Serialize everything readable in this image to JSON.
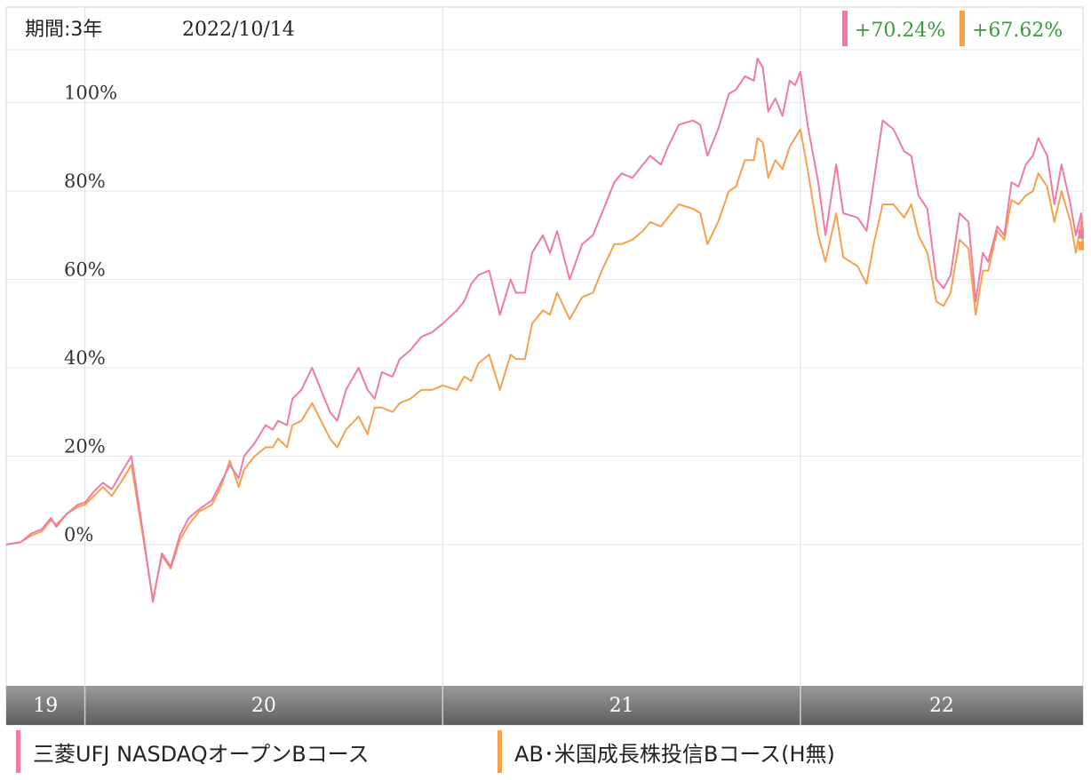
{
  "header": {
    "period_label": "期間:3年",
    "date_label": "2022/10/14"
  },
  "returns": [
    {
      "value": "+70.24%",
      "color": "#ef7aa5"
    },
    {
      "value": "+67.62%",
      "color": "#f7a04c"
    }
  ],
  "legend": [
    {
      "label": "三菱UFJ NASDAQオープンBコース",
      "color": "#ef7aa5"
    },
    {
      "label": "AB･米国成長株投信Bコース(H無)",
      "color": "#f7a04c"
    }
  ],
  "chart_data": {
    "type": "line",
    "yticks": [
      0,
      20,
      40,
      60,
      80,
      100
    ],
    "ytick_labels": [
      "0%",
      "20%",
      "40%",
      "60%",
      "80%",
      "100%"
    ],
    "ylim": [
      -32,
      112
    ],
    "xlim": [
      2019.78,
      2022.79
    ],
    "xbands": [
      {
        "label": "19",
        "start": 2019.78,
        "end": 2020.0
      },
      {
        "label": "20",
        "start": 2020.0,
        "end": 2021.0
      },
      {
        "label": "21",
        "start": 2021.0,
        "end": 2022.0
      },
      {
        "label": "22",
        "start": 2022.0,
        "end": 2022.79
      }
    ],
    "grid": true,
    "series": [
      {
        "name": "三菱UFJ NASDAQオープンBコース",
        "color": "#ef7aa5",
        "points": [
          [
            2019.78,
            0
          ],
          [
            2019.82,
            0.5
          ],
          [
            2019.85,
            2.5
          ],
          [
            2019.88,
            3.5
          ],
          [
            2019.905,
            6
          ],
          [
            2019.92,
            4
          ],
          [
            2019.95,
            7
          ],
          [
            2019.98,
            9
          ],
          [
            2020.0,
            9.5
          ],
          [
            2020.025,
            12
          ],
          [
            2020.05,
            14
          ],
          [
            2020.075,
            12.5
          ],
          [
            2020.1,
            16
          ],
          [
            2020.13,
            20
          ],
          [
            2020.16,
            4
          ],
          [
            2020.19,
            -13
          ],
          [
            2020.215,
            -2
          ],
          [
            2020.24,
            -5
          ],
          [
            2020.265,
            2
          ],
          [
            2020.29,
            6
          ],
          [
            2020.32,
            8
          ],
          [
            2020.355,
            10
          ],
          [
            2020.38,
            14
          ],
          [
            2020.405,
            18
          ],
          [
            2020.43,
            15
          ],
          [
            2020.445,
            20
          ],
          [
            2020.475,
            23
          ],
          [
            2020.505,
            27
          ],
          [
            2020.525,
            26
          ],
          [
            2020.54,
            28
          ],
          [
            2020.565,
            27
          ],
          [
            2020.58,
            33
          ],
          [
            2020.605,
            35
          ],
          [
            2020.635,
            40
          ],
          [
            2020.66,
            35
          ],
          [
            2020.685,
            30
          ],
          [
            2020.705,
            28
          ],
          [
            2020.73,
            35
          ],
          [
            2020.765,
            40
          ],
          [
            2020.79,
            35
          ],
          [
            2020.81,
            33
          ],
          [
            2020.83,
            39
          ],
          [
            2020.86,
            38
          ],
          [
            2020.88,
            42
          ],
          [
            2020.91,
            44
          ],
          [
            2020.94,
            47
          ],
          [
            2020.97,
            48
          ],
          [
            2021.0,
            50
          ],
          [
            2021.04,
            53
          ],
          [
            2021.06,
            55
          ],
          [
            2021.08,
            59
          ],
          [
            2021.1,
            61
          ],
          [
            2021.13,
            62
          ],
          [
            2021.16,
            52
          ],
          [
            2021.19,
            60
          ],
          [
            2021.205,
            57
          ],
          [
            2021.23,
            57
          ],
          [
            2021.25,
            66
          ],
          [
            2021.28,
            70
          ],
          [
            2021.3,
            66
          ],
          [
            2021.32,
            71
          ],
          [
            2021.355,
            60
          ],
          [
            2021.39,
            68
          ],
          [
            2021.42,
            70
          ],
          [
            2021.445,
            75
          ],
          [
            2021.48,
            82
          ],
          [
            2021.5,
            84
          ],
          [
            2021.53,
            83
          ],
          [
            2021.56,
            86
          ],
          [
            2021.58,
            88
          ],
          [
            2021.61,
            86
          ],
          [
            2021.63,
            90
          ],
          [
            2021.66,
            95
          ],
          [
            2021.7,
            96
          ],
          [
            2021.72,
            95
          ],
          [
            2021.74,
            88
          ],
          [
            2021.77,
            94
          ],
          [
            2021.8,
            102
          ],
          [
            2021.82,
            103
          ],
          [
            2021.845,
            106
          ],
          [
            2021.87,
            105
          ],
          [
            2021.88,
            110
          ],
          [
            2021.895,
            108
          ],
          [
            2021.91,
            98
          ],
          [
            2021.93,
            101
          ],
          [
            2021.95,
            97
          ],
          [
            2021.97,
            105
          ],
          [
            2021.985,
            104
          ],
          [
            2022.0,
            107
          ],
          [
            2022.02,
            95
          ],
          [
            2022.05,
            82
          ],
          [
            2022.07,
            70
          ],
          [
            2022.1,
            86
          ],
          [
            2022.12,
            75
          ],
          [
            2022.16,
            74
          ],
          [
            2022.185,
            71
          ],
          [
            2022.205,
            82
          ],
          [
            2022.23,
            96
          ],
          [
            2022.26,
            94
          ],
          [
            2022.29,
            89
          ],
          [
            2022.31,
            88
          ],
          [
            2022.33,
            79
          ],
          [
            2022.355,
            76
          ],
          [
            2022.38,
            60
          ],
          [
            2022.4,
            58
          ],
          [
            2022.42,
            61
          ],
          [
            2022.445,
            75
          ],
          [
            2022.47,
            73
          ],
          [
            2022.49,
            55
          ],
          [
            2022.51,
            66
          ],
          [
            2022.525,
            64
          ],
          [
            2022.55,
            72
          ],
          [
            2022.57,
            70
          ],
          [
            2022.59,
            82
          ],
          [
            2022.61,
            81
          ],
          [
            2022.63,
            86
          ],
          [
            2022.65,
            88
          ],
          [
            2022.665,
            92
          ],
          [
            2022.69,
            88
          ],
          [
            2022.71,
            77
          ],
          [
            2022.73,
            86
          ],
          [
            2022.755,
            77
          ],
          [
            2022.77,
            70
          ],
          [
            2022.785,
            75
          ],
          [
            2022.79,
            70.24
          ]
        ]
      },
      {
        "name": "AB･米国成長株投信Bコース(H無)",
        "color": "#f7a04c",
        "points": [
          [
            2019.78,
            0
          ],
          [
            2019.82,
            0.5
          ],
          [
            2019.85,
            2
          ],
          [
            2019.88,
            3
          ],
          [
            2019.905,
            5.5
          ],
          [
            2019.92,
            4.5
          ],
          [
            2019.95,
            7
          ],
          [
            2019.98,
            8.5
          ],
          [
            2020.0,
            9
          ],
          [
            2020.025,
            11
          ],
          [
            2020.05,
            13
          ],
          [
            2020.075,
            11
          ],
          [
            2020.1,
            14
          ],
          [
            2020.13,
            18
          ],
          [
            2020.16,
            3
          ],
          [
            2020.19,
            -12.5
          ],
          [
            2020.215,
            -2.5
          ],
          [
            2020.24,
            -5.5
          ],
          [
            2020.265,
            1
          ],
          [
            2020.29,
            4.5
          ],
          [
            2020.32,
            7.5
          ],
          [
            2020.355,
            9
          ],
          [
            2020.38,
            13
          ],
          [
            2020.405,
            19
          ],
          [
            2020.43,
            13
          ],
          [
            2020.445,
            17
          ],
          [
            2020.475,
            20
          ],
          [
            2020.505,
            22
          ],
          [
            2020.525,
            22
          ],
          [
            2020.54,
            24
          ],
          [
            2020.565,
            22
          ],
          [
            2020.58,
            27
          ],
          [
            2020.605,
            28
          ],
          [
            2020.635,
            32
          ],
          [
            2020.66,
            28
          ],
          [
            2020.685,
            24
          ],
          [
            2020.705,
            22
          ],
          [
            2020.73,
            26
          ],
          [
            2020.765,
            29
          ],
          [
            2020.79,
            25
          ],
          [
            2020.81,
            31
          ],
          [
            2020.83,
            31
          ],
          [
            2020.86,
            30
          ],
          [
            2020.88,
            32
          ],
          [
            2020.91,
            33
          ],
          [
            2020.94,
            35
          ],
          [
            2020.97,
            35
          ],
          [
            2021.0,
            36
          ],
          [
            2021.04,
            35
          ],
          [
            2021.06,
            38
          ],
          [
            2021.08,
            37
          ],
          [
            2021.1,
            41
          ],
          [
            2021.13,
            43
          ],
          [
            2021.16,
            35
          ],
          [
            2021.19,
            43
          ],
          [
            2021.205,
            42
          ],
          [
            2021.23,
            42
          ],
          [
            2021.25,
            50
          ],
          [
            2021.28,
            53
          ],
          [
            2021.3,
            52
          ],
          [
            2021.32,
            57
          ],
          [
            2021.355,
            51
          ],
          [
            2021.39,
            56
          ],
          [
            2021.42,
            57
          ],
          [
            2021.445,
            62
          ],
          [
            2021.48,
            68
          ],
          [
            2021.5,
            68
          ],
          [
            2021.53,
            69
          ],
          [
            2021.56,
            71
          ],
          [
            2021.58,
            73
          ],
          [
            2021.61,
            72
          ],
          [
            2021.63,
            74
          ],
          [
            2021.66,
            77
          ],
          [
            2021.7,
            76
          ],
          [
            2021.72,
            75
          ],
          [
            2021.74,
            68
          ],
          [
            2021.77,
            73
          ],
          [
            2021.8,
            80
          ],
          [
            2021.82,
            81
          ],
          [
            2021.845,
            87
          ],
          [
            2021.87,
            87
          ],
          [
            2021.88,
            92
          ],
          [
            2021.895,
            91
          ],
          [
            2021.91,
            83
          ],
          [
            2021.93,
            87
          ],
          [
            2021.95,
            85
          ],
          [
            2021.97,
            90
          ],
          [
            2021.985,
            92
          ],
          [
            2022.0,
            94
          ],
          [
            2022.02,
            85
          ],
          [
            2022.05,
            70
          ],
          [
            2022.07,
            64
          ],
          [
            2022.1,
            75
          ],
          [
            2022.12,
            65
          ],
          [
            2022.16,
            63
          ],
          [
            2022.185,
            59
          ],
          [
            2022.205,
            68
          ],
          [
            2022.23,
            77
          ],
          [
            2022.26,
            77
          ],
          [
            2022.29,
            74
          ],
          [
            2022.31,
            77
          ],
          [
            2022.33,
            70
          ],
          [
            2022.355,
            66
          ],
          [
            2022.38,
            55
          ],
          [
            2022.4,
            54
          ],
          [
            2022.42,
            57
          ],
          [
            2022.445,
            69
          ],
          [
            2022.47,
            67
          ],
          [
            2022.49,
            52
          ],
          [
            2022.51,
            62
          ],
          [
            2022.525,
            62
          ],
          [
            2022.55,
            71
          ],
          [
            2022.57,
            69
          ],
          [
            2022.59,
            78
          ],
          [
            2022.61,
            77
          ],
          [
            2022.63,
            79
          ],
          [
            2022.65,
            80
          ],
          [
            2022.665,
            84
          ],
          [
            2022.69,
            81
          ],
          [
            2022.71,
            73
          ],
          [
            2022.73,
            80
          ],
          [
            2022.755,
            73
          ],
          [
            2022.77,
            66
          ],
          [
            2022.785,
            73
          ],
          [
            2022.79,
            67.62
          ]
        ]
      }
    ]
  }
}
